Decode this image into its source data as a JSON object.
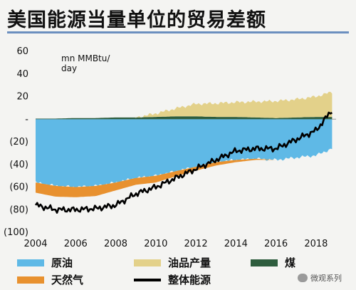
{
  "title": "美国能源当量单位的贸易差额",
  "watermark": "微观系列",
  "colors": {
    "crude": "#5fb9e6",
    "products": "#e3d18a",
    "coal": "#2e5d3e",
    "gas": "#e8912f",
    "total": "#000000",
    "background": "#f4f4f2",
    "title_rule": "#6b8fbf"
  },
  "chart_data": {
    "type": "area",
    "title": "美国能源当量单位的贸易差额",
    "unit": "mn MMBtu/ day",
    "unit_lines": [
      "mn MMBtu/",
      "day"
    ],
    "xlim": [
      2004,
      2019
    ],
    "ylim": [
      -100,
      60
    ],
    "x_ticks": [
      2004,
      2006,
      2008,
      2010,
      2012,
      2014,
      2016,
      2018
    ],
    "x_tick_labels": [
      "2004",
      "2006",
      "2008",
      "2010",
      "2012",
      "2014",
      "2016",
      "2018"
    ],
    "y_ticks": [
      60,
      40,
      20,
      0,
      -20,
      -40,
      -60,
      -80,
      -100
    ],
    "y_tick_labels": [
      "60",
      "40",
      "20",
      "-",
      "(20)",
      "(40)",
      "(60)",
      "(80)",
      "(100)"
    ],
    "legend_placement": "bottom",
    "x": [
      2004,
      2005,
      2006,
      2007,
      2008,
      2009,
      2010,
      2011,
      2012,
      2013,
      2014,
      2015,
      2016,
      2017,
      2018,
      2018.8
    ],
    "series": [
      {
        "name": "原油",
        "key": "crude",
        "values": [
          -56,
          -59,
          -60,
          -59,
          -56,
          -52,
          -50,
          -46,
          -42,
          -38,
          -36,
          -35,
          -36,
          -34,
          -32,
          -26
        ]
      },
      {
        "name": "油品产量",
        "key": "products",
        "values": [
          -14,
          -15,
          -13,
          -10,
          -6,
          0,
          3,
          7,
          11,
          12,
          13,
          14,
          15,
          16,
          18,
          22
        ]
      },
      {
        "name": "煤",
        "key": "coal",
        "values": [
          0.5,
          0.5,
          1,
          1,
          1.5,
          1.5,
          2,
          2.5,
          2.5,
          2,
          2,
          1.5,
          1,
          1.5,
          2,
          2
        ]
      },
      {
        "name": "天然气",
        "key": "gas",
        "values": [
          -9,
          -9.5,
          -9,
          -9,
          -7,
          -6,
          -6,
          -4.5,
          -3.5,
          -3,
          -2,
          -1,
          0,
          1,
          3,
          5
        ]
      },
      {
        "name": "整体能源",
        "key": "total",
        "values": [
          -76,
          -80,
          -80,
          -79,
          -76,
          -66,
          -60,
          -52,
          -44,
          -36,
          -28,
          -26,
          -26,
          -18,
          -10,
          8
        ]
      }
    ],
    "legend": [
      {
        "key": "crude",
        "label": "原油"
      },
      {
        "key": "products",
        "label": "油品产量"
      },
      {
        "key": "coal",
        "label": "煤"
      },
      {
        "key": "gas",
        "label": "天然气"
      },
      {
        "key": "total",
        "label": "整体能源"
      }
    ]
  }
}
